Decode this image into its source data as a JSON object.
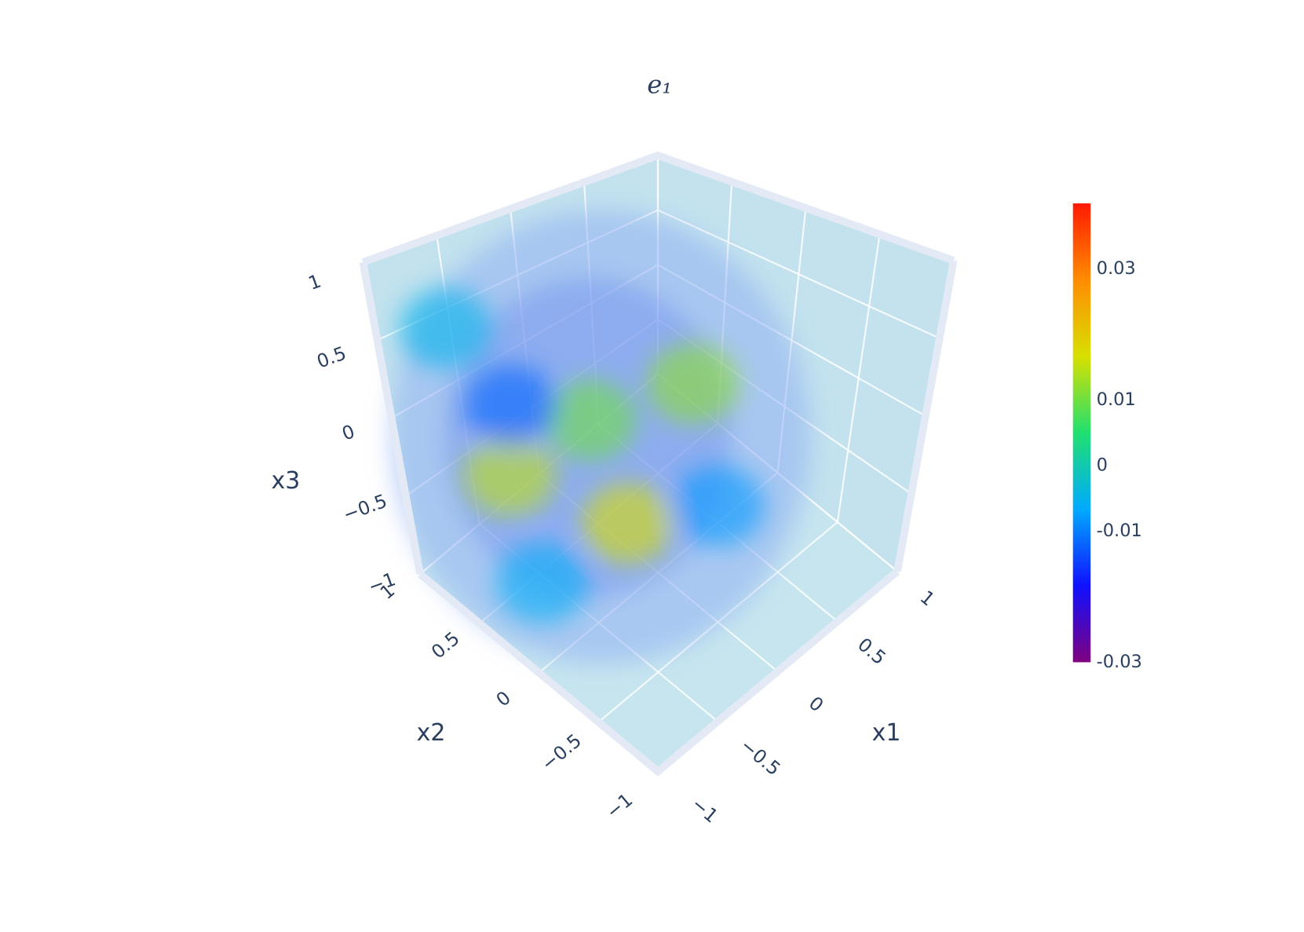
{
  "chart_data": {
    "type": "volume",
    "title": "e₁",
    "x_label": "x1",
    "y_label": "x2",
    "z_label": "x3",
    "xlim": [
      -1,
      1
    ],
    "ylim": [
      -1,
      1
    ],
    "zlim": [
      -1,
      1
    ],
    "xticks": [
      {
        "value": -1,
        "label": "−1"
      },
      {
        "value": -0.5,
        "label": "−0.5"
      },
      0,
      0.5,
      1
    ],
    "yticks": [
      {
        "value": -1,
        "label": "−1"
      },
      {
        "value": -0.5,
        "label": "−0.5"
      },
      0,
      0.5,
      1
    ],
    "zticks": [
      {
        "value": -1,
        "label": "−1"
      },
      {
        "value": -0.5,
        "label": "−0.5"
      },
      0,
      0.5,
      1
    ],
    "grid": true,
    "colorscale": [
      "#800080",
      "#1010ff",
      "#00aaff",
      "#20e070",
      "#d8e000",
      "#ff8c00",
      "#ff1a00"
    ],
    "clim": [
      -0.03,
      0.04
    ],
    "colorbar_ticks": [
      -0.03,
      -0.01,
      0,
      0.01,
      0.03
    ],
    "regions": {
      "x1": [
        0.35,
        -0.27,
        -0.64,
        -0.28,
        -0.67,
        0.08,
        -0.69,
        -0.78
      ],
      "x2": [
        0.09,
        0.24,
        0.51,
        -0.04,
        0.41,
        -0.39,
        0.26,
        0.72
      ],
      "x3": [
        0,
        0,
        -0.3,
        -0.5,
        0.2,
        -0.4,
        -0.8,
        0.6
      ],
      "values": [
        0.012,
        0.01,
        0.015,
        0.017,
        -0.012,
        -0.008,
        -0.006,
        -0.005
      ]
    }
  }
}
